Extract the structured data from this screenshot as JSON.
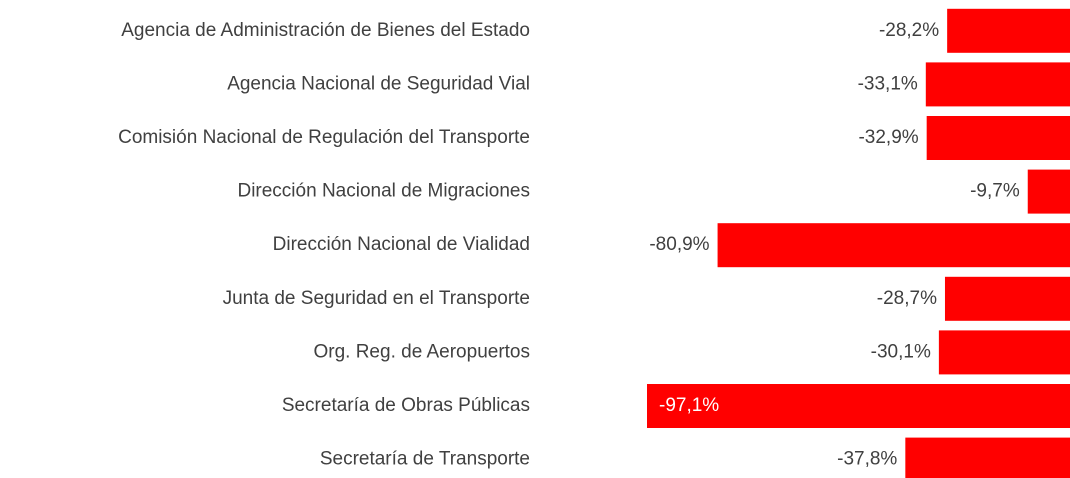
{
  "chart_data": {
    "type": "bar",
    "orientation": "horizontal",
    "color": "#ff0000",
    "categories": [
      "Agencia de Administración de Bienes del Estado",
      "Agencia Nacional de Seguridad Vial",
      "Comisión Nacional de Regulación del Transporte",
      "Dirección Nacional de Migraciones",
      "Dirección Nacional de Vialidad",
      "Junta de Seguridad en el Transporte",
      "Org. Reg. de Aeropuertos",
      "Secretaría de Obras Públicas",
      "Secretaría de Transporte"
    ],
    "values": [
      -28.2,
      -33.1,
      -32.9,
      -9.7,
      -80.9,
      -28.7,
      -30.1,
      -97.1,
      -37.8
    ],
    "value_labels": [
      "-28,2%",
      "-33,1%",
      "-32,9%",
      "-9,7%",
      "-80,9%",
      "-28,7%",
      "-30,1%",
      "-97,1%",
      "-37,8%"
    ]
  }
}
